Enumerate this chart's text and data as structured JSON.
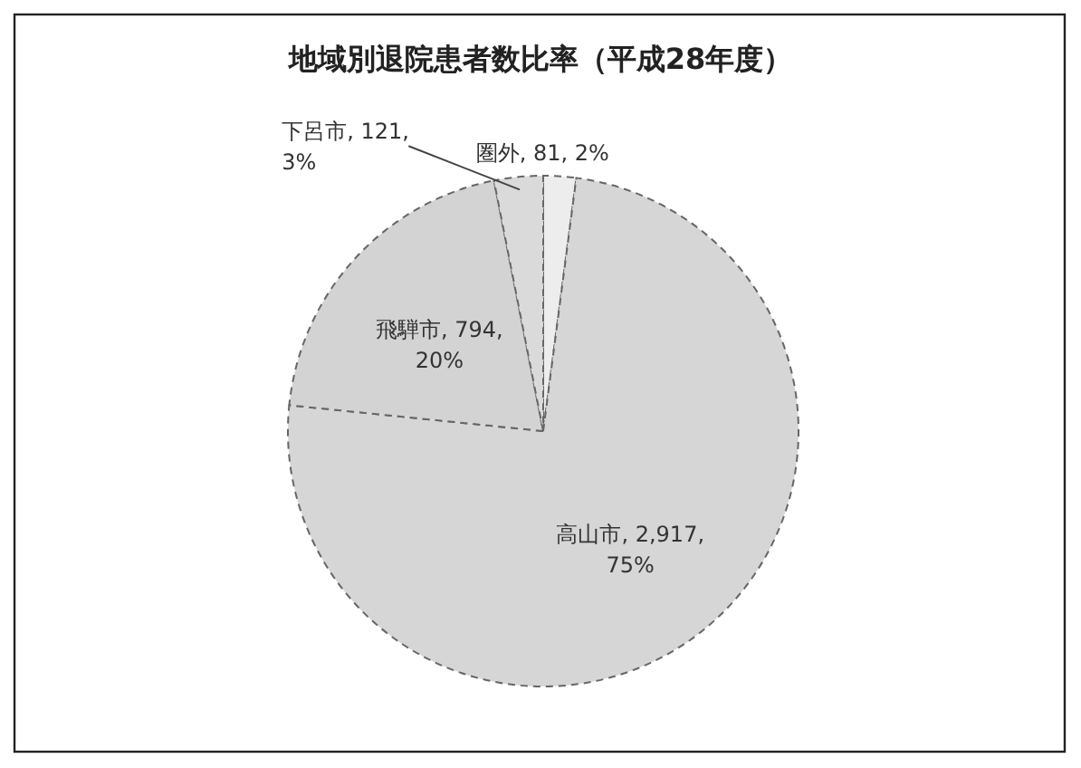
{
  "chart_data": {
    "type": "pie",
    "title": "地域別退院患者数比率（平成28年度）",
    "categories": [
      "圏外",
      "高山市",
      "飛騨市",
      "下呂市"
    ],
    "values": [
      81,
      2917,
      794,
      121
    ],
    "value_labels": [
      "81, 2%",
      "2,917, 75%",
      "794, 20%",
      "121, 3%"
    ],
    "colors": [
      "#ededed",
      "#d6d6d6",
      "#d3d3d3",
      "#dadada"
    ]
  }
}
